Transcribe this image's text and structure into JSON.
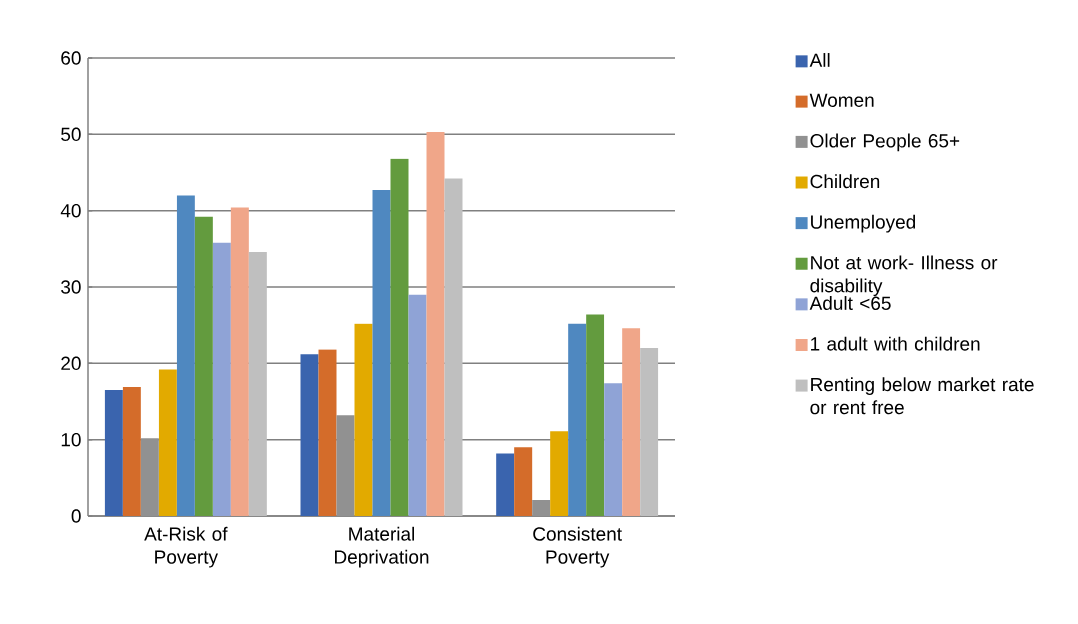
{
  "chart_data": {
    "type": "bar",
    "categories": [
      "At-Risk of Poverty",
      "Material Deprivation",
      "Consistent Poverty"
    ],
    "series": [
      {
        "name": "All",
        "color": "#3a64ae",
        "values": [
          16.5,
          21.2,
          8.2
        ]
      },
      {
        "name": "Women",
        "color": "#d46c2a",
        "values": [
          16.9,
          21.8,
          9.0
        ]
      },
      {
        "name": "Older People 65+",
        "color": "#919191",
        "values": [
          10.2,
          13.2,
          2.1
        ]
      },
      {
        "name": "Children",
        "color": "#e2aa00",
        "values": [
          19.2,
          25.2,
          11.1
        ]
      },
      {
        "name": "Unemployed",
        "color": "#4f88c0",
        "values": [
          42.0,
          42.7,
          25.2
        ]
      },
      {
        "name": "Not at work- Illness or disability",
        "color": "#639b3e",
        "values": [
          39.2,
          46.8,
          26.4
        ]
      },
      {
        "name": "Adult <65",
        "color": "#8fa3d6",
        "values": [
          35.8,
          29.0,
          17.4
        ]
      },
      {
        "name": "1 adult with children",
        "color": "#f0a689",
        "values": [
          40.4,
          50.3,
          24.6
        ]
      },
      {
        "name": "Renting below market rate or rent free",
        "color": "#bfbfbf",
        "values": [
          34.6,
          44.2,
          22.0
        ]
      }
    ],
    "ylim": [
      0,
      60
    ],
    "yticks": [
      0,
      10,
      20,
      30,
      40,
      50,
      60
    ],
    "grid": "y",
    "legend": "right"
  }
}
